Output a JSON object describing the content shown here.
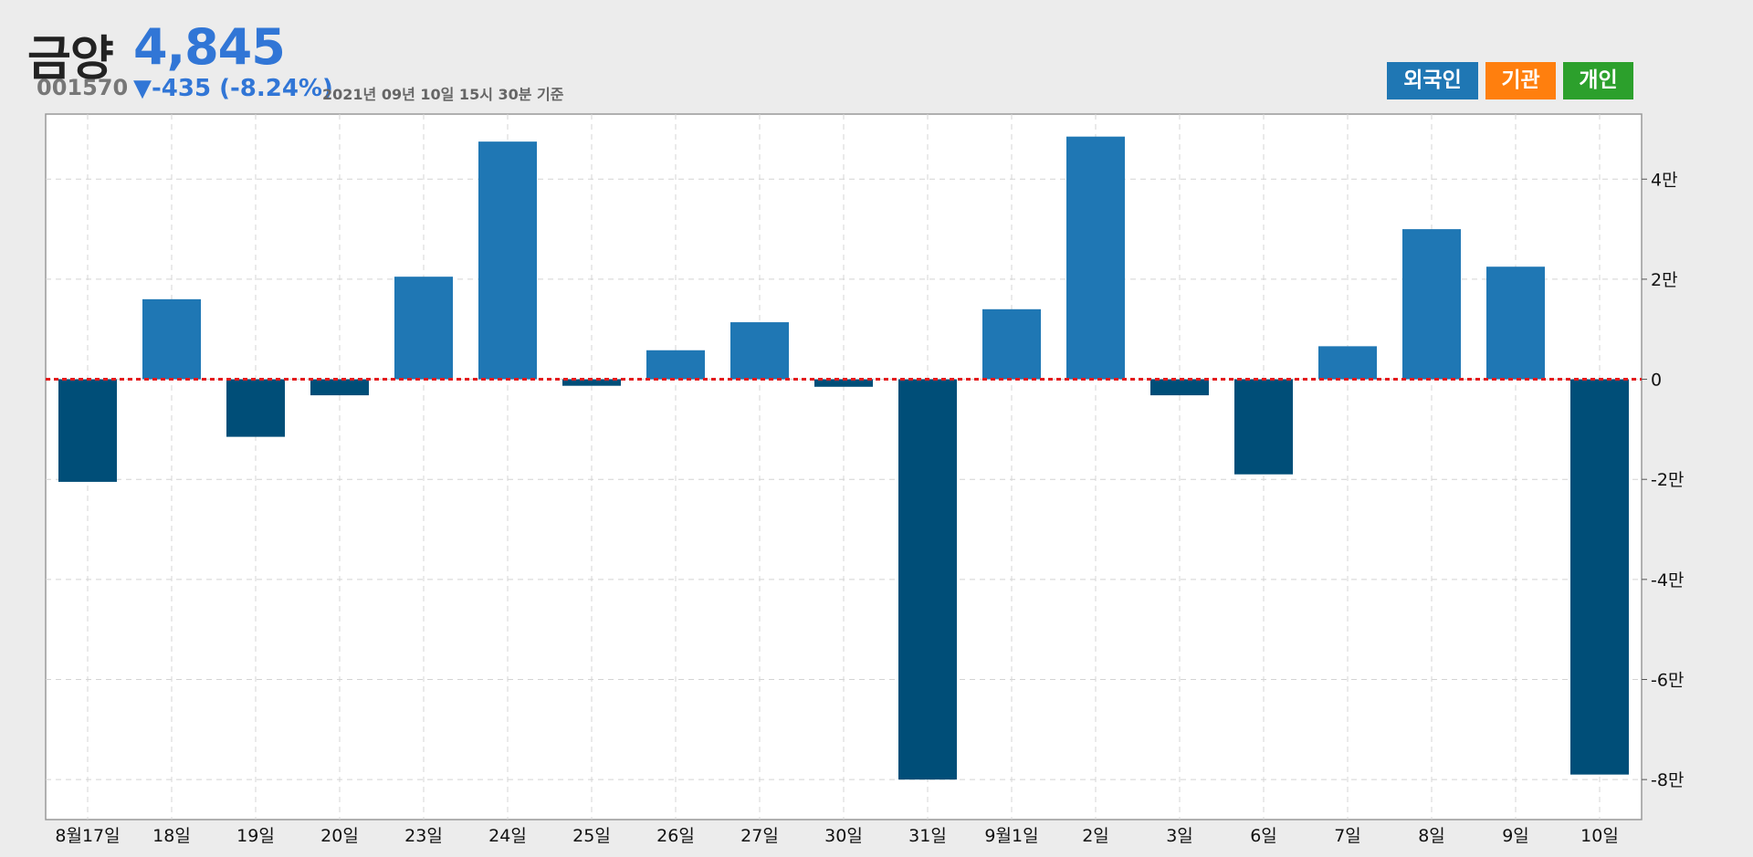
{
  "stock": {
    "name": "금양",
    "price": "4,845",
    "code": "001570",
    "change": "▼-435 (-8.24%)",
    "timestamp": "2021년 09년 10일 15시 30분 기준"
  },
  "legend": [
    {
      "label": "외국인",
      "color": "#1f77b4"
    },
    {
      "label": "기관",
      "color": "#ff7f0e"
    },
    {
      "label": "개인",
      "color": "#2ca02c"
    }
  ],
  "colors": {
    "positive": "#1f77b4",
    "negative": "#004e78",
    "zero_line": "#e41a1c"
  },
  "chart_data": {
    "type": "bar",
    "series": [
      {
        "name": "외국인",
        "values": [
          -20500,
          16000,
          -11500,
          -3200,
          20500,
          47500,
          -1300,
          5800,
          11400,
          -1500,
          -80000,
          14000,
          48500,
          -3200,
          -19000,
          6600,
          30000,
          22500,
          -79000
        ]
      }
    ],
    "categories": [
      "8월17일",
      "18일",
      "19일",
      "20일",
      "23일",
      "24일",
      "25일",
      "26일",
      "27일",
      "30일",
      "31일",
      "9월1일",
      "2일",
      "3일",
      "6일",
      "7일",
      "8일",
      "9일",
      "10일"
    ],
    "ylim": [
      -88000,
      53000
    ],
    "yticks": [
      -80000,
      -60000,
      -40000,
      -20000,
      0,
      20000,
      40000
    ],
    "ytick_labels": [
      "-8만",
      "-6만",
      "-4만",
      "-2만",
      "0",
      "2만",
      "4만"
    ],
    "grid": true,
    "legend_position": "top-right"
  }
}
